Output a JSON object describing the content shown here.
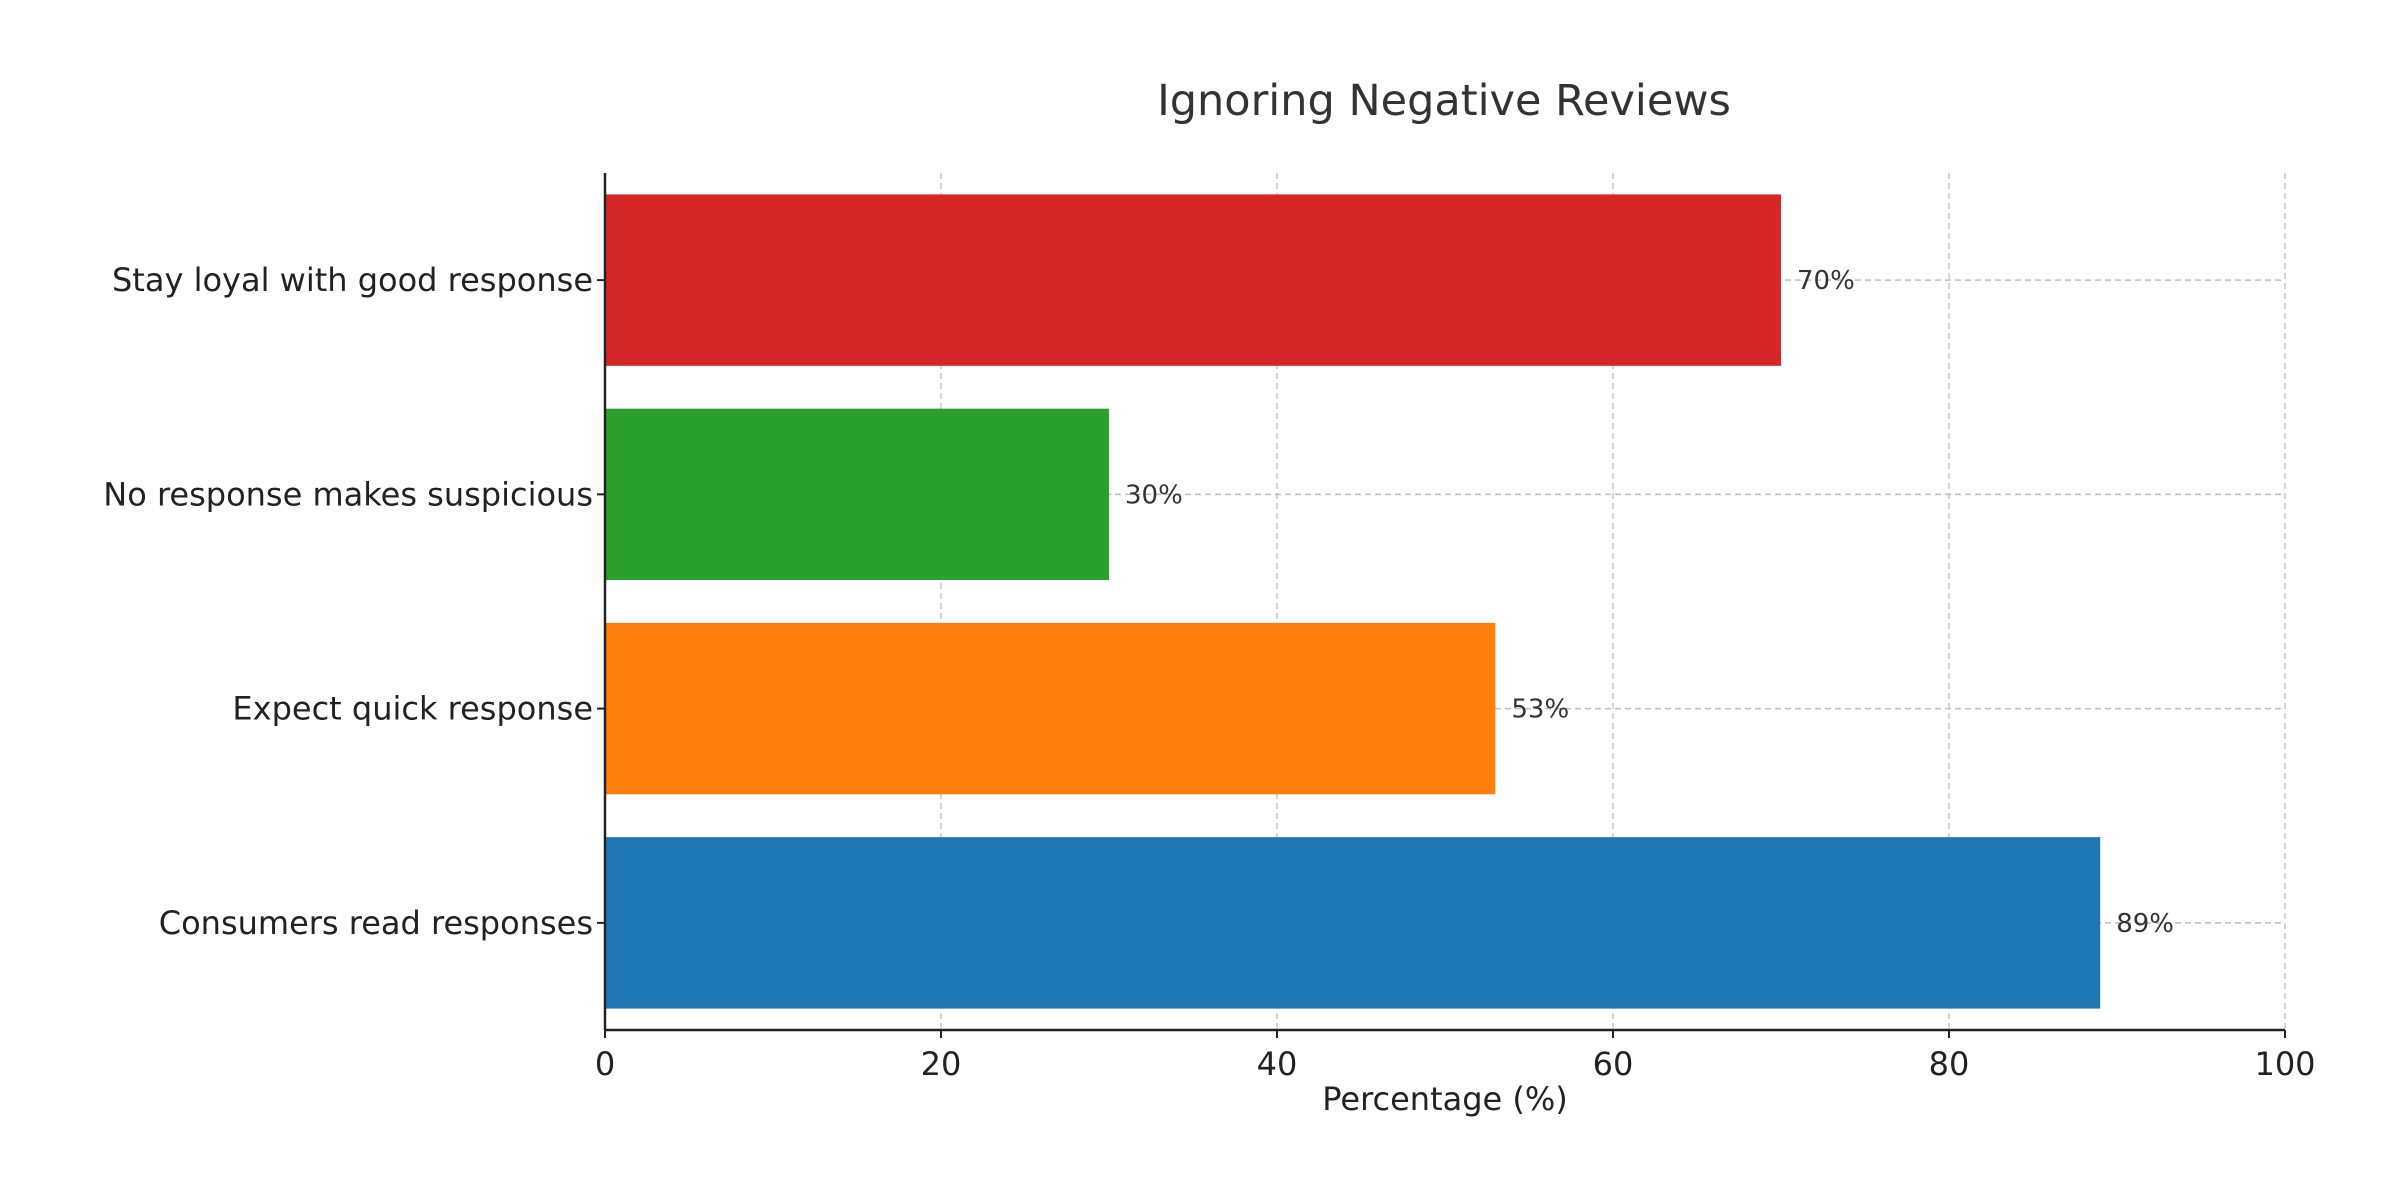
{
  "chart_data": {
    "type": "bar",
    "orientation": "horizontal",
    "title": "Ignoring Negative Reviews",
    "xlabel": "Percentage (%)",
    "ylabel": "",
    "categories": [
      "Consumers read responses",
      "Expect quick response",
      "No response makes suspicious",
      "Stay loyal with good response"
    ],
    "values": [
      89,
      53,
      30,
      70
    ],
    "value_labels": [
      "89%",
      "53%",
      "30%",
      "70%"
    ],
    "colors": [
      "#1f77b4",
      "#ff7f0e",
      "#2ca02c",
      "#d62728"
    ],
    "xlim": [
      0,
      100
    ],
    "xticks": [
      "0",
      "20",
      "40",
      "60",
      "80",
      "100"
    ],
    "grid": true
  }
}
